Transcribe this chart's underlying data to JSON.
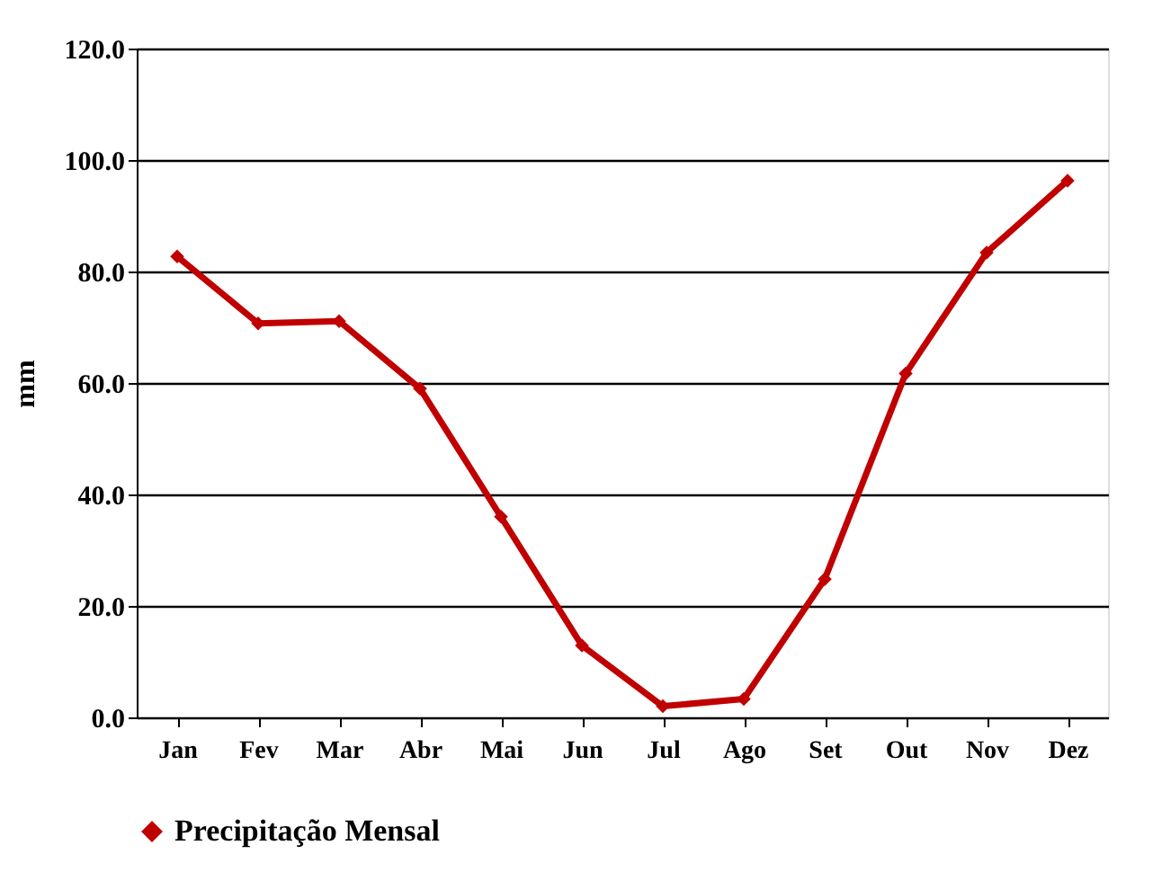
{
  "chart_data": {
    "type": "line",
    "ylabel": "mm",
    "categories": [
      "Jan",
      "Fev",
      "Mar",
      "Abr",
      "Mai",
      "Jun",
      "Jul",
      "Ago",
      "Set",
      "Out",
      "Nov",
      "Dez"
    ],
    "series": [
      {
        "name": "Precipitação Mensal",
        "color": "#c00000",
        "values": [
          82.7,
          70.7,
          71.1,
          59.0,
          36.0,
          12.9,
          2.0,
          3.3,
          24.8,
          61.7,
          83.4,
          96.3
        ]
      }
    ],
    "ylim": [
      0,
      120
    ],
    "yticks": [
      {
        "value": 0,
        "label": "0.0"
      },
      {
        "value": 20,
        "label": "20.0"
      },
      {
        "value": 40,
        "label": "40.0"
      },
      {
        "value": 60,
        "label": "60.0"
      },
      {
        "value": 80,
        "label": "80.0"
      },
      {
        "value": 100,
        "label": "100.0"
      },
      {
        "value": 120,
        "label": "120.0"
      }
    ],
    "grid": "y",
    "legend": "bottom",
    "marker": "diamond",
    "line_style": "solid"
  }
}
